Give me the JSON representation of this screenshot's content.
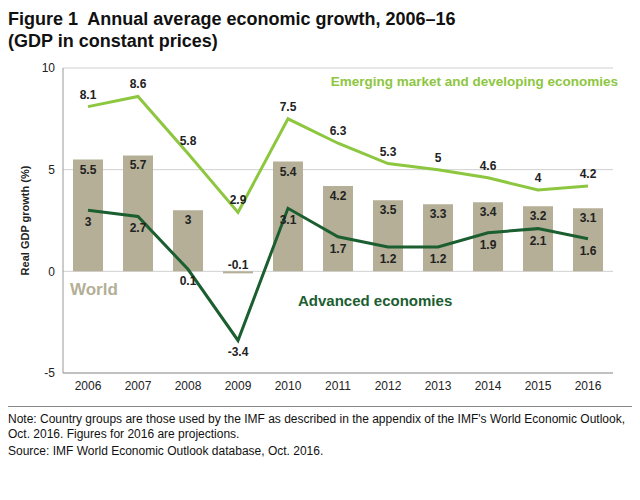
{
  "chart_data": {
    "type": "bar",
    "title": "Figure 1  Annual average economic growth, 2006–16",
    "subtitle": "(GDP in constant prices)",
    "y_label": "Real GDP growth (%)",
    "categories": [
      "2006",
      "2007",
      "2008",
      "2009",
      "2010",
      "2011",
      "2012",
      "2013",
      "2014",
      "2015",
      "2016"
    ],
    "series": [
      {
        "name": "World",
        "type": "bar",
        "color": "#b4af96",
        "values": [
          5.5,
          5.7,
          3.0,
          -0.1,
          5.4,
          4.2,
          3.5,
          3.3,
          3.4,
          3.2,
          3.1
        ]
      },
      {
        "name": "Emerging market and developing economies",
        "type": "line",
        "color": "#8dc63f",
        "values": [
          8.1,
          8.6,
          5.8,
          2.9,
          7.5,
          6.3,
          5.3,
          5.0,
          4.6,
          4.0,
          4.2
        ]
      },
      {
        "name": "Advanced economies",
        "type": "line",
        "color": "#1b5e30",
        "values": [
          3.0,
          2.7,
          0.1,
          -3.4,
          3.1,
          1.7,
          1.2,
          1.2,
          1.9,
          2.1,
          1.6
        ]
      }
    ],
    "ylim": [
      -5,
      10
    ],
    "yticks": [
      -5,
      0,
      5,
      10
    ],
    "grid": true,
    "data_labels": true,
    "note": "Note: Country groups are those used by the IMF as described in the appendix of the IMF's World Economic Outlook, Oct. 2016. Figures for 2016 are projections.",
    "source": "Source: IMF World Economic Outlook database, Oct. 2016."
  }
}
